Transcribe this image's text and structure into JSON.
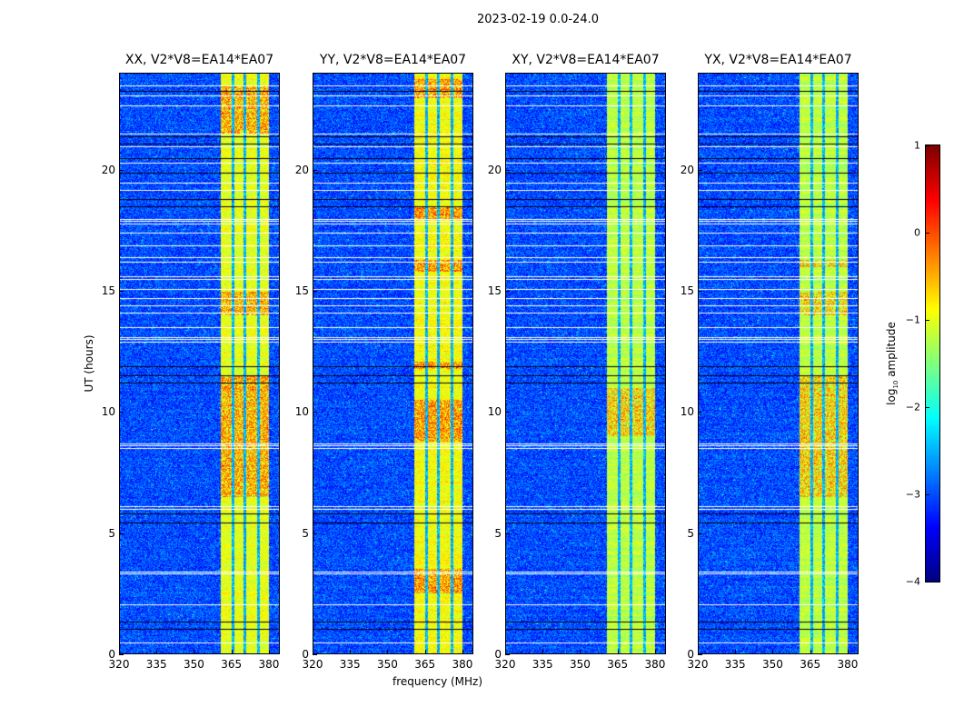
{
  "chart_data": {
    "type": "heatmap",
    "suptitle": "2023-02-19 0.0-24.0",
    "xlabel": "frequency (MHz)",
    "ylabel": "UT (hours)",
    "xlim": [
      320,
      384.4
    ],
    "ylim": [
      0,
      24
    ],
    "xticks": [
      320,
      335,
      350,
      365,
      380
    ],
    "yticks": [
      0,
      5,
      10,
      15,
      20
    ],
    "panels": [
      {
        "title": "XX, V2*V8=EA14*EA07",
        "band_level": -1.0,
        "hot_hours": [
          [
            6.5,
            11.5
          ],
          [
            14,
            15
          ],
          [
            21.5,
            23.5
          ]
        ]
      },
      {
        "title": "YY, V2*V8=EA14*EA07",
        "band_level": -0.9,
        "hot_hours": [
          [
            2.5,
            3.5
          ],
          [
            8.8,
            10.5
          ],
          [
            11.8,
            12.1
          ],
          [
            15.8,
            16.3
          ],
          [
            18,
            18.5
          ],
          [
            23,
            23.8
          ]
        ]
      },
      {
        "title": "XY, V2*V8=EA14*EA07",
        "band_level": -1.2,
        "hot_hours": [
          [
            9,
            11
          ]
        ]
      },
      {
        "title": "YX, V2*V8=EA14*EA07",
        "band_level": -1.2,
        "hot_hours": [
          [
            6.5,
            11.5
          ],
          [
            14,
            15
          ],
          [
            16,
            16.3
          ]
        ]
      }
    ],
    "signal_band_mhz": [
      360.7,
      380.0
    ],
    "band_gaps_mhz": [
      365.5,
      370.5,
      376.0
    ],
    "background_level": -3.0,
    "flagged_white_hours": [
      0.45,
      2.05,
      3.3,
      3.4,
      6.0,
      6.1,
      8.5,
      8.6,
      8.7,
      12.9,
      13.0,
      13.1,
      13.5,
      14.1,
      14.4,
      14.7,
      15.1,
      15.5,
      15.6,
      16.2,
      16.4,
      16.9,
      17.4,
      17.8,
      17.9,
      18.0,
      19.2,
      19.5,
      20.3,
      21.0,
      21.5,
      22.7,
      23.1,
      23.5
    ],
    "flagged_black_hours": [
      1.0,
      1.3,
      5.4,
      5.8,
      11.2,
      11.5,
      11.9,
      18.5,
      18.8,
      19.9,
      20.5,
      21.1,
      21.4,
      23.3
    ],
    "colorbar": {
      "label": "log10 amplitude",
      "label_main": "log",
      "label_sub": "10",
      "label_tail": " amplitude",
      "range": [
        -4,
        1
      ],
      "ticks": [
        1,
        0,
        -1,
        -2,
        -3,
        -4
      ],
      "tick_labels": [
        "1",
        "0",
        "−1",
        "−2",
        "−3",
        "−4"
      ],
      "colormap": "jet"
    }
  }
}
